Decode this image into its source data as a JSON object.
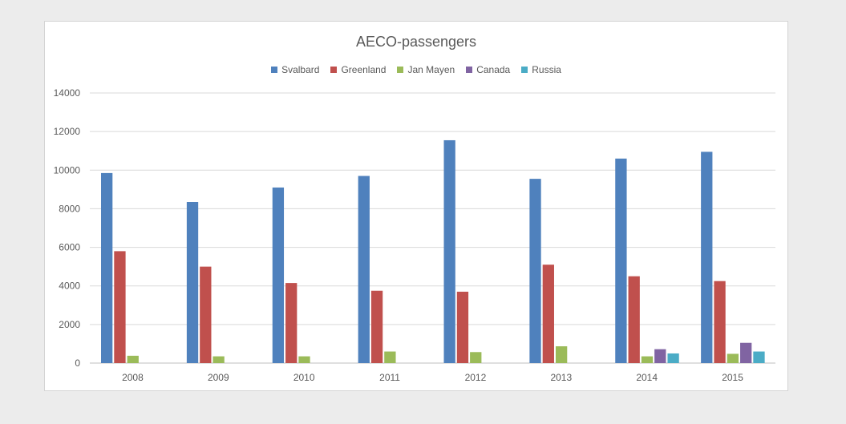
{
  "chart_data": {
    "type": "bar",
    "title": "AECO-passengers",
    "xlabel": "",
    "ylabel": "",
    "categories": [
      "2008",
      "2009",
      "2010",
      "2011",
      "2012",
      "2013",
      "2014",
      "2015"
    ],
    "ylim": [
      0,
      14000
    ],
    "yticks": [
      "0",
      "2000",
      "4000",
      "6000",
      "8000",
      "10000",
      "12000",
      "14000"
    ],
    "grid": true,
    "legend_position": "top",
    "series": [
      {
        "name": "Svalbard",
        "color": "#4f81bd",
        "values": [
          9850,
          8350,
          9100,
          9700,
          11550,
          9550,
          10600,
          10950
        ]
      },
      {
        "name": "Greenland",
        "color": "#c0504d",
        "values": [
          5800,
          5000,
          4150,
          3750,
          3700,
          5100,
          4500,
          4250
        ]
      },
      {
        "name": "Jan Mayen",
        "color": "#9bbb59",
        "values": [
          380,
          350,
          350,
          600,
          570,
          870,
          350,
          480
        ]
      },
      {
        "name": "Canada",
        "color": "#8064a2",
        "values": [
          0,
          0,
          0,
          0,
          0,
          0,
          720,
          1050
        ]
      },
      {
        "name": "Russia",
        "color": "#4bacc6",
        "values": [
          0,
          0,
          0,
          0,
          0,
          0,
          500,
          600
        ]
      }
    ]
  }
}
